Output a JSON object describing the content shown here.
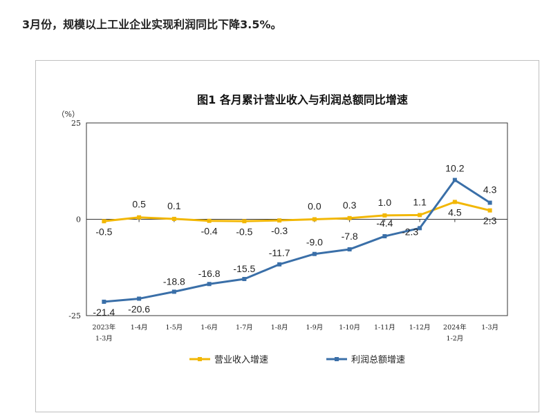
{
  "headline": "3月份，规模以上工业企业实现利润同比下降3.5%。",
  "chart_data": {
    "type": "line",
    "title": "图1  各月累计营业收入与利润总额同比增速",
    "ylabel": "（%）",
    "ylim": [
      -25,
      25
    ],
    "yticks": [
      "25",
      "0",
      "-25"
    ],
    "categories": [
      [
        "2023年",
        "1-3月"
      ],
      [
        "1-4月"
      ],
      [
        "1-5月"
      ],
      [
        "1-6月"
      ],
      [
        "1-7月"
      ],
      [
        "1-8月"
      ],
      [
        "1-9月"
      ],
      [
        "1-10月"
      ],
      [
        "1-11月"
      ],
      [
        "1-12月"
      ],
      [
        "2024年",
        "1-2月"
      ],
      [
        "1-3月"
      ]
    ],
    "series": [
      {
        "name": "营业收入增速",
        "color": "#F2B705",
        "values": [
          -0.5,
          0.5,
          0.1,
          -0.4,
          -0.5,
          -0.3,
          0.0,
          0.3,
          1.0,
          1.1,
          4.5,
          2.3
        ],
        "labels": [
          "-0.5",
          "0.5",
          "0.1",
          "-0.4",
          "-0.5",
          "-0.3",
          "0.0",
          "0.3",
          "1.0",
          "1.1",
          "4.5",
          "2.3"
        ]
      },
      {
        "name": "利润总额增速",
        "color": "#3A6FA8",
        "values": [
          -21.4,
          -20.6,
          -18.8,
          -16.8,
          -15.5,
          -11.7,
          -9.0,
          -7.8,
          -4.4,
          -2.3,
          10.2,
          4.3
        ],
        "labels": [
          "-21.4",
          "-20.6",
          "-18.8",
          "-16.8",
          "-15.5",
          "-11.7",
          "-9.0",
          "-7.8",
          "-4.4",
          "-2.3",
          "10.2",
          "4.3"
        ]
      }
    ],
    "legend": "bottom"
  }
}
